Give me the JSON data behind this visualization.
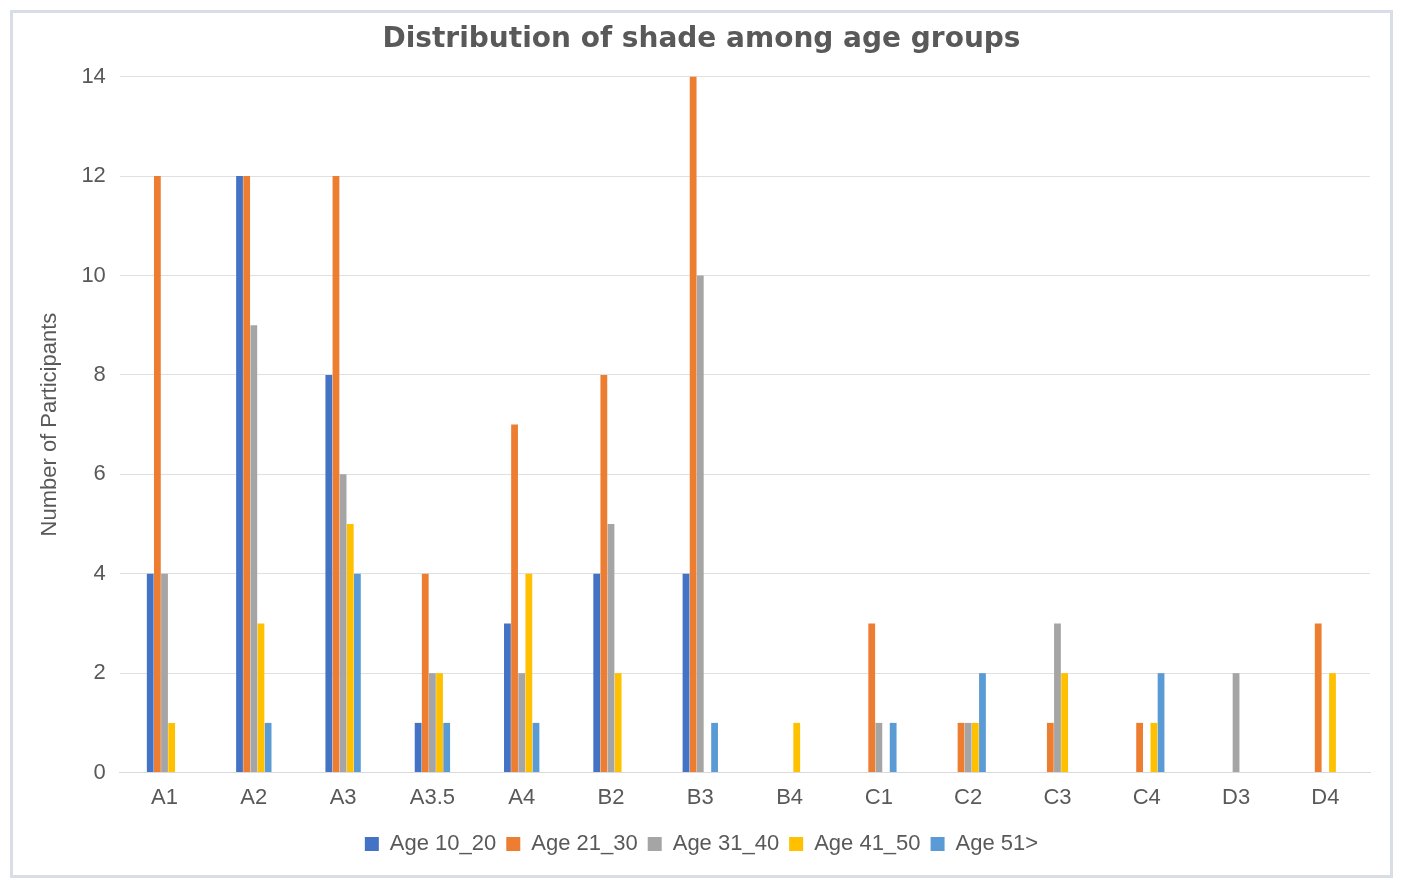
{
  "chart_data": {
    "type": "bar",
    "title": "Distribution of shade among age groups",
    "ylabel": "Number of Participants",
    "categories": [
      "A1",
      "A2",
      "A3",
      "A3.5",
      "A4",
      "B2",
      "B3",
      "B4",
      "C1",
      "C2",
      "C3",
      "C4",
      "D3",
      "D4"
    ],
    "series": [
      {
        "name": "Age 10_20",
        "color": "#4472c4",
        "values": [
          4,
          12,
          8,
          1,
          3,
          4,
          4,
          0,
          0,
          0,
          0,
          0,
          0,
          0
        ]
      },
      {
        "name": "Age 21_30",
        "color": "#ed7d31",
        "values": [
          12,
          12,
          12,
          4,
          7,
          8,
          14,
          0,
          3,
          1,
          1,
          1,
          0,
          3
        ]
      },
      {
        "name": "Age 31_40",
        "color": "#a5a5a5",
        "values": [
          4,
          9,
          6,
          2,
          2,
          5,
          10,
          0,
          1,
          1,
          3,
          0,
          2,
          0
        ]
      },
      {
        "name": "Age 41_50",
        "color": "#ffc000",
        "values": [
          1,
          3,
          5,
          2,
          4,
          2,
          0,
          1,
          0,
          1,
          2,
          1,
          0,
          2
        ]
      },
      {
        "name": "Age 51>",
        "color": "#5b9bd5",
        "values": [
          0,
          1,
          4,
          1,
          1,
          0,
          1,
          0,
          1,
          2,
          0,
          2,
          0,
          0
        ]
      }
    ],
    "ylim": [
      0,
      14
    ],
    "yticks": [
      0,
      2,
      4,
      6,
      8,
      10,
      12,
      14
    ],
    "grid": "y",
    "legend": "bottom"
  }
}
